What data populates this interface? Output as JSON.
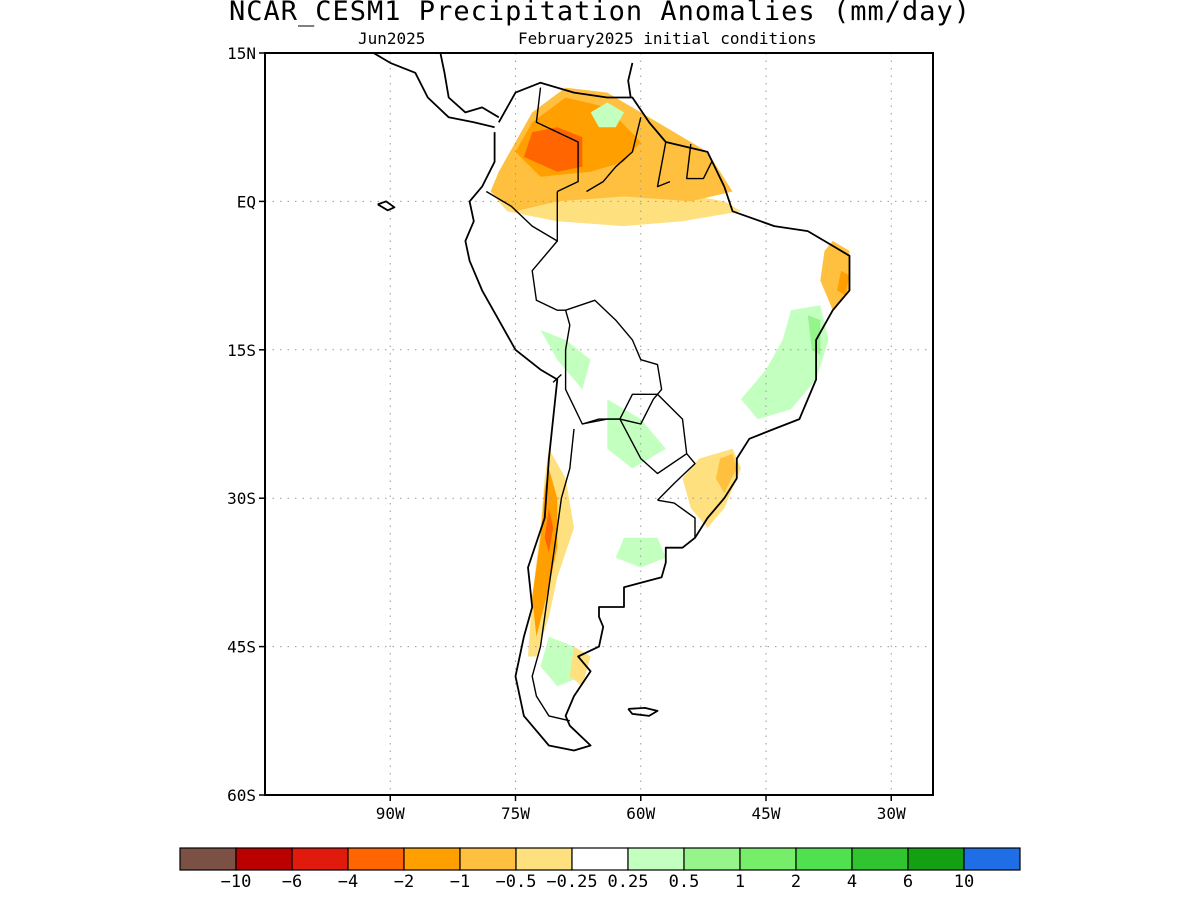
{
  "title": "NCAR_CESM1 Precipitation Anomalies (mm/day)",
  "subtitle_left": "Jun2025",
  "subtitle_right": "February2025 initial conditions",
  "lat_labels": [
    "15N",
    "EQ",
    "15S",
    "30S",
    "45S",
    "60S"
  ],
  "lon_labels": [
    "90W",
    "75W",
    "60W",
    "45W",
    "30W"
  ],
  "map_extent": {
    "lon": [
      -105,
      -25
    ],
    "lat": [
      -60,
      15
    ]
  },
  "grid_lats": [
    15,
    0,
    -15,
    -30,
    -45,
    -60
  ],
  "grid_lons": [
    -90,
    -75,
    -60,
    -45,
    -30
  ],
  "colorbar": {
    "colors": [
      "#7b5146",
      "#bb0000",
      "#e01a0c",
      "#ff6500",
      "#ffa000",
      "#ffc03f",
      "#ffe07f",
      "#ffffff",
      "#c3ffbf",
      "#95f48a",
      "#77ee6a",
      "#4fe14f",
      "#31c431",
      "#13a013",
      "#1f6ee6"
    ],
    "labels": [
      "-10",
      "-6",
      "-4",
      "-2",
      "-1",
      "-0.5",
      "-0.25",
      "0.25",
      "0.5",
      "1",
      "2",
      "4",
      "6",
      "10"
    ]
  },
  "anomaly_regions": [
    {
      "level": "-0.25",
      "color": "#ffe07f",
      "lonlat": [
        [
          -73,
          3
        ],
        [
          -60,
          1.5
        ],
        [
          -50,
          0
        ],
        [
          -48,
          -1
        ],
        [
          -55,
          -2
        ],
        [
          -62,
          -2.5
        ],
        [
          -70,
          -2
        ],
        [
          -76,
          -1
        ],
        [
          -78,
          1
        ]
      ]
    },
    {
      "level": "-0.5",
      "color": "#ffc03f",
      "lonlat": [
        [
          -77,
          3
        ],
        [
          -75,
          6
        ],
        [
          -73,
          9
        ],
        [
          -69,
          11.5
        ],
        [
          -64,
          11
        ],
        [
          -58,
          8
        ],
        [
          -52,
          5
        ],
        [
          -49,
          1
        ],
        [
          -54,
          0
        ],
        [
          -62,
          0.5
        ],
        [
          -70,
          0
        ],
        [
          -75,
          -1
        ],
        [
          -78,
          1
        ]
      ]
    },
    {
      "level": "-1",
      "color": "#ffa000",
      "lonlat": [
        [
          -75,
          5
        ],
        [
          -73,
          8
        ],
        [
          -69,
          10.5
        ],
        [
          -64,
          9.5
        ],
        [
          -60,
          6
        ],
        [
          -62,
          4
        ],
        [
          -66,
          3
        ],
        [
          -72,
          2.5
        ]
      ]
    },
    {
      "level": "-2",
      "color": "#ff6500",
      "lonlat": [
        [
          -74,
          4.5
        ],
        [
          -73,
          7
        ],
        [
          -70,
          7.5
        ],
        [
          -67,
          6.5
        ],
        [
          -67,
          3.5
        ],
        [
          -70,
          3
        ]
      ]
    },
    {
      "level": "0.25",
      "color": "#c3ffbf",
      "lonlat": [
        [
          -66,
          9
        ],
        [
          -64,
          10
        ],
        [
          -62,
          9
        ],
        [
          -63,
          7.5
        ],
        [
          -65,
          7.5
        ]
      ]
    },
    {
      "level": "-0.5",
      "color": "#ffc03f",
      "lonlat": [
        [
          -37,
          -4
        ],
        [
          -35,
          -5
        ],
        [
          -35,
          -9
        ],
        [
          -37,
          -11
        ],
        [
          -38.5,
          -8
        ],
        [
          -38,
          -5
        ]
      ]
    },
    {
      "level": "-1",
      "color": "#ffa000",
      "lonlat": [
        [
          -36,
          -7
        ],
        [
          -35,
          -7.5
        ],
        [
          -35.5,
          -9.5
        ],
        [
          -36.5,
          -9
        ]
      ]
    },
    {
      "level": "0.25",
      "color": "#c3ffbf",
      "lonlat": [
        [
          -42,
          -11
        ],
        [
          -38.5,
          -10.5
        ],
        [
          -37.5,
          -14
        ],
        [
          -39,
          -18
        ],
        [
          -42,
          -21
        ],
        [
          -46,
          -22
        ],
        [
          -48,
          -20
        ],
        [
          -45,
          -17
        ],
        [
          -43,
          -14
        ]
      ]
    },
    {
      "level": "0.5",
      "color": "#95f48a",
      "lonlat": [
        [
          -40,
          -11.5
        ],
        [
          -38.5,
          -12
        ],
        [
          -38.5,
          -15.5
        ],
        [
          -39.5,
          -15
        ]
      ]
    },
    {
      "level": "-0.25",
      "color": "#ffe07f",
      "lonlat": [
        [
          -49,
          -25
        ],
        [
          -48,
          -27
        ],
        [
          -50,
          -31
        ],
        [
          -52,
          -33
        ],
        [
          -54,
          -31
        ],
        [
          -55,
          -28
        ],
        [
          -53,
          -26
        ]
      ]
    },
    {
      "level": "-0.5",
      "color": "#ffc03f",
      "lonlat": [
        [
          -49,
          -25.5
        ],
        [
          -48.5,
          -27
        ],
        [
          -50,
          -29.5
        ],
        [
          -51,
          -28
        ],
        [
          -50.5,
          -26
        ]
      ]
    },
    {
      "level": "0.25",
      "color": "#c3ffbf",
      "lonlat": [
        [
          -72,
          -13
        ],
        [
          -69,
          -14
        ],
        [
          -66,
          -16
        ],
        [
          -67,
          -19
        ],
        [
          -70,
          -16
        ]
      ]
    },
    {
      "level": "0.25",
      "color": "#c3ffbf",
      "lonlat": [
        [
          -64,
          -20
        ],
        [
          -60,
          -22
        ],
        [
          -57,
          -25
        ],
        [
          -61,
          -27
        ],
        [
          -64,
          -25
        ]
      ]
    },
    {
      "level": "0.25",
      "color": "#c3ffbf",
      "lonlat": [
        [
          -62,
          -34
        ],
        [
          -58,
          -34
        ],
        [
          -57,
          -36
        ],
        [
          -60,
          -37
        ],
        [
          -63,
          -36
        ]
      ]
    },
    {
      "level": "-0.25",
      "color": "#ffe07f",
      "lonlat": [
        [
          -71,
          -25
        ],
        [
          -69,
          -28
        ],
        [
          -68,
          -33
        ],
        [
          -70,
          -38
        ],
        [
          -71,
          -42
        ],
        [
          -72.5,
          -46
        ],
        [
          -73.5,
          -46
        ],
        [
          -73,
          -40
        ],
        [
          -72,
          -33
        ],
        [
          -71.5,
          -28
        ]
      ]
    },
    {
      "level": "-1",
      "color": "#ffa000",
      "lonlat": [
        [
          -71,
          -27
        ],
        [
          -70,
          -30
        ],
        [
          -70,
          -35
        ],
        [
          -71,
          -39
        ],
        [
          -72.5,
          -44
        ],
        [
          -73,
          -40
        ],
        [
          -72,
          -34
        ],
        [
          -71.5,
          -29
        ]
      ]
    },
    {
      "level": "-2",
      "color": "#ff6500",
      "lonlat": [
        [
          -71,
          -31
        ],
        [
          -70.5,
          -33
        ],
        [
          -71,
          -35.5
        ],
        [
          -71.5,
          -34
        ]
      ]
    },
    {
      "level": "0.25",
      "color": "#c3ffbf",
      "lonlat": [
        [
          -71,
          -44
        ],
        [
          -68,
          -45
        ],
        [
          -67,
          -48
        ],
        [
          -70,
          -49
        ],
        [
          -72,
          -47
        ]
      ]
    },
    {
      "level": "-0.25",
      "color": "#ffe07f",
      "lonlat": [
        [
          -68,
          -45
        ],
        [
          -66,
          -46
        ],
        [
          -67,
          -49
        ],
        [
          -68.5,
          -48
        ]
      ]
    }
  ],
  "coastlines": [
    {
      "name": "south-america",
      "lonlat": [
        [
          -77,
          8
        ],
        [
          -75,
          11
        ],
        [
          -72,
          12
        ],
        [
          -68,
          11
        ],
        [
          -64,
          10.5
        ],
        [
          -61,
          10.5
        ],
        [
          -59,
          8
        ],
        [
          -57,
          6
        ],
        [
          -52,
          5
        ],
        [
          -50,
          1.5
        ],
        [
          -49,
          -1
        ],
        [
          -44,
          -2.5
        ],
        [
          -40,
          -3
        ],
        [
          -37,
          -4.5
        ],
        [
          -35,
          -5.5
        ],
        [
          -35,
          -9
        ],
        [
          -37,
          -11
        ],
        [
          -39,
          -14
        ],
        [
          -39,
          -18
        ],
        [
          -41,
          -22
        ],
        [
          -44,
          -23
        ],
        [
          -47,
          -24
        ],
        [
          -48.5,
          -26
        ],
        [
          -48.5,
          -28
        ],
        [
          -50,
          -30
        ],
        [
          -52,
          -32
        ],
        [
          -53.5,
          -34
        ],
        [
          -55,
          -35
        ],
        [
          -57,
          -35
        ],
        [
          -57,
          -36.5
        ],
        [
          -57.5,
          -38
        ],
        [
          -62,
          -39
        ],
        [
          -62,
          -41
        ],
        [
          -65,
          -41
        ],
        [
          -65,
          -42
        ],
        [
          -64.5,
          -43
        ],
        [
          -65,
          -45
        ],
        [
          -67.5,
          -46
        ],
        [
          -66,
          -47.5
        ],
        [
          -68,
          -50
        ],
        [
          -69,
          -52
        ],
        [
          -68.5,
          -53
        ],
        [
          -66,
          -55
        ],
        [
          -68,
          -55.5
        ],
        [
          -71,
          -55
        ],
        [
          -74,
          -52
        ],
        [
          -75,
          -48
        ],
        [
          -74,
          -44
        ],
        [
          -73,
          -41
        ],
        [
          -73.5,
          -37
        ],
        [
          -71.5,
          -32
        ],
        [
          -71,
          -26
        ],
        [
          -70,
          -18
        ],
        [
          -72,
          -17
        ],
        [
          -75,
          -15
        ],
        [
          -77,
          -12
        ],
        [
          -79,
          -9
        ],
        [
          -80.5,
          -6
        ],
        [
          -81,
          -4
        ],
        [
          -80,
          -2
        ],
        [
          -80.5,
          0
        ],
        [
          -79,
          1.5
        ],
        [
          -77.5,
          4
        ],
        [
          -77.5,
          7
        ]
      ]
    },
    {
      "name": "central-america",
      "lonlat": [
        [
          -77.5,
          7.5
        ],
        [
          -80,
          8
        ],
        [
          -83,
          8.5
        ],
        [
          -85.5,
          10.5
        ],
        [
          -87,
          13
        ],
        [
          -90,
          14
        ],
        [
          -92,
          15
        ]
      ]
    },
    {
      "name": "central-america-east",
      "lonlat": [
        [
          -77,
          8.5
        ],
        [
          -79,
          9.5
        ],
        [
          -81,
          9
        ],
        [
          -83,
          10.5
        ],
        [
          -83.5,
          13
        ],
        [
          -84,
          15
        ]
      ]
    },
    {
      "name": "cuba-haiti-hint",
      "lonlat": [
        [
          -74,
          15
        ],
        [
          -72,
          15
        ]
      ]
    },
    {
      "name": "galapagos",
      "lonlat": [
        [
          -91.5,
          -0.3
        ],
        [
          -90.3,
          -0.9
        ],
        [
          -89.5,
          -0.6
        ],
        [
          -90.5,
          0
        ],
        [
          -91.5,
          -0.3
        ]
      ]
    },
    {
      "name": "falklands",
      "lonlat": [
        [
          -61.5,
          -51.3
        ],
        [
          -59.5,
          -51.2
        ],
        [
          -58,
          -51.5
        ],
        [
          -59,
          -52
        ],
        [
          -61,
          -51.8
        ],
        [
          -61.5,
          -51.3
        ]
      ]
    },
    {
      "name": "lesser-antilles",
      "lonlat": [
        [
          -61,
          14
        ],
        [
          -61.5,
          12.2
        ],
        [
          -61.2,
          10.5
        ]
      ]
    }
  ],
  "borders": [
    {
      "name": "colombia-venezuela",
      "lonlat": [
        [
          -72,
          11.5
        ],
        [
          -72.5,
          8
        ],
        [
          -70,
          7
        ],
        [
          -67.5,
          6
        ],
        [
          -67.5,
          2
        ],
        [
          -70,
          1
        ]
      ]
    },
    {
      "name": "colombia-peru-ecuador",
      "lonlat": [
        [
          -70,
          1
        ],
        [
          -70,
          -4
        ],
        [
          -73,
          -2.5
        ],
        [
          -75.5,
          -0.5
        ],
        [
          -78.5,
          1
        ]
      ]
    },
    {
      "name": "venezuela-guyana",
      "lonlat": [
        [
          -60,
          8.5
        ],
        [
          -61,
          5
        ],
        [
          -63,
          3.5
        ],
        [
          -64.5,
          2
        ],
        [
          -66.5,
          1
        ]
      ]
    },
    {
      "name": "guyana-suriname",
      "lonlat": [
        [
          -57,
          6
        ],
        [
          -58,
          1.5
        ],
        [
          -56.5,
          2
        ]
      ]
    },
    {
      "name": "suriname-frenchguiana",
      "lonlat": [
        [
          -54,
          5.8
        ],
        [
          -54.5,
          2.3
        ],
        [
          -52.5,
          2.3
        ],
        [
          -51.5,
          4
        ]
      ]
    },
    {
      "name": "peru-brazil-bolivia",
      "lonlat": [
        [
          -70,
          -4
        ],
        [
          -73,
          -7
        ],
        [
          -72.5,
          -10
        ],
        [
          -70,
          -11
        ],
        [
          -69,
          -11
        ],
        [
          -65.5,
          -10
        ],
        [
          -63,
          -12
        ],
        [
          -61,
          -14
        ],
        [
          -60,
          -16
        ],
        [
          -58,
          -16.5
        ],
        [
          -57.5,
          -19
        ],
        [
          -58.5,
          -20
        ],
        [
          -60,
          -22.5
        ],
        [
          -62.5,
          -22
        ],
        [
          -64,
          -22
        ],
        [
          -67,
          -22.5
        ],
        [
          -69,
          -19
        ],
        [
          -69,
          -15
        ],
        [
          -68.5,
          -12.5
        ],
        [
          -69,
          -11
        ]
      ]
    },
    {
      "name": "peru-chile",
      "lonlat": [
        [
          -70.5,
          -18.3
        ],
        [
          -69.5,
          -17.5
        ]
      ]
    },
    {
      "name": "chile-argentina",
      "lonlat": [
        [
          -68,
          -23
        ],
        [
          -68.5,
          -27
        ],
        [
          -69.5,
          -30
        ],
        [
          -70,
          -33
        ],
        [
          -70.5,
          -36
        ],
        [
          -71,
          -39
        ],
        [
          -71.5,
          -42
        ],
        [
          -72,
          -45
        ],
        [
          -73,
          -48
        ],
        [
          -72.5,
          -50
        ],
        [
          -71,
          -52
        ],
        [
          -68.5,
          -52.5
        ]
      ]
    },
    {
      "name": "paraguay",
      "lonlat": [
        [
          -62.5,
          -22
        ],
        [
          -61,
          -19.5
        ],
        [
          -58,
          -19.5
        ],
        [
          -55,
          -22
        ],
        [
          -54.5,
          -25.5
        ],
        [
          -58,
          -27.5
        ],
        [
          -60,
          -26
        ],
        [
          -62.5,
          -22
        ]
      ]
    },
    {
      "name": "argentina-brazil",
      "lonlat": [
        [
          -54.5,
          -25.5
        ],
        [
          -53.5,
          -26.5
        ],
        [
          -56,
          -28.5
        ],
        [
          -58,
          -30.2
        ]
      ]
    },
    {
      "name": "uruguay",
      "lonlat": [
        [
          -58,
          -30.2
        ],
        [
          -56,
          -30.5
        ],
        [
          -53.5,
          -32
        ],
        [
          -53.5,
          -34
        ]
      ]
    },
    {
      "name": "argentina-bolivia",
      "lonlat": [
        [
          -67,
          -22.5
        ],
        [
          -65,
          -22
        ],
        [
          -62.5,
          -22
        ]
      ]
    }
  ]
}
